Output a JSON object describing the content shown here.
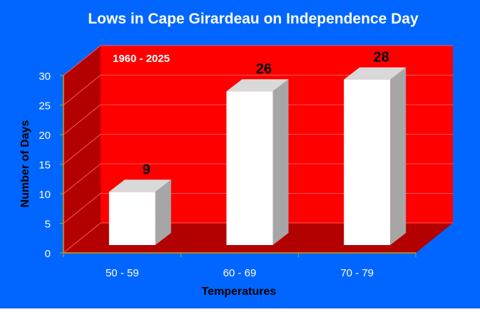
{
  "chart_data": {
    "type": "bar",
    "title": "Lows in Cape Girardeau on Independence Day",
    "subtitle": "1960 - 2025",
    "xlabel": "Temperatures",
    "ylabel": "Number of Days",
    "categories": [
      "50 - 59",
      "60 - 69",
      "70 - 79"
    ],
    "values": [
      9,
      26,
      28
    ],
    "data_labels": [
      "9",
      "26",
      "28"
    ],
    "ylim": [
      0,
      30
    ],
    "yticks": [
      "0",
      "5",
      "10",
      "15",
      "20",
      "25",
      "30"
    ],
    "grid": true,
    "legend": "none",
    "colors": {
      "background": "#0066ff",
      "back_wall": "#ff0000",
      "side_wall": "#b30000",
      "floor": "#b30000",
      "bar_front": "#ffffff",
      "bar_top": "#d9d9d9",
      "bar_side": "#a6a6a6",
      "text_light": "#ffffff",
      "text_dark": "#000000",
      "gridline": "#ff5555"
    }
  }
}
